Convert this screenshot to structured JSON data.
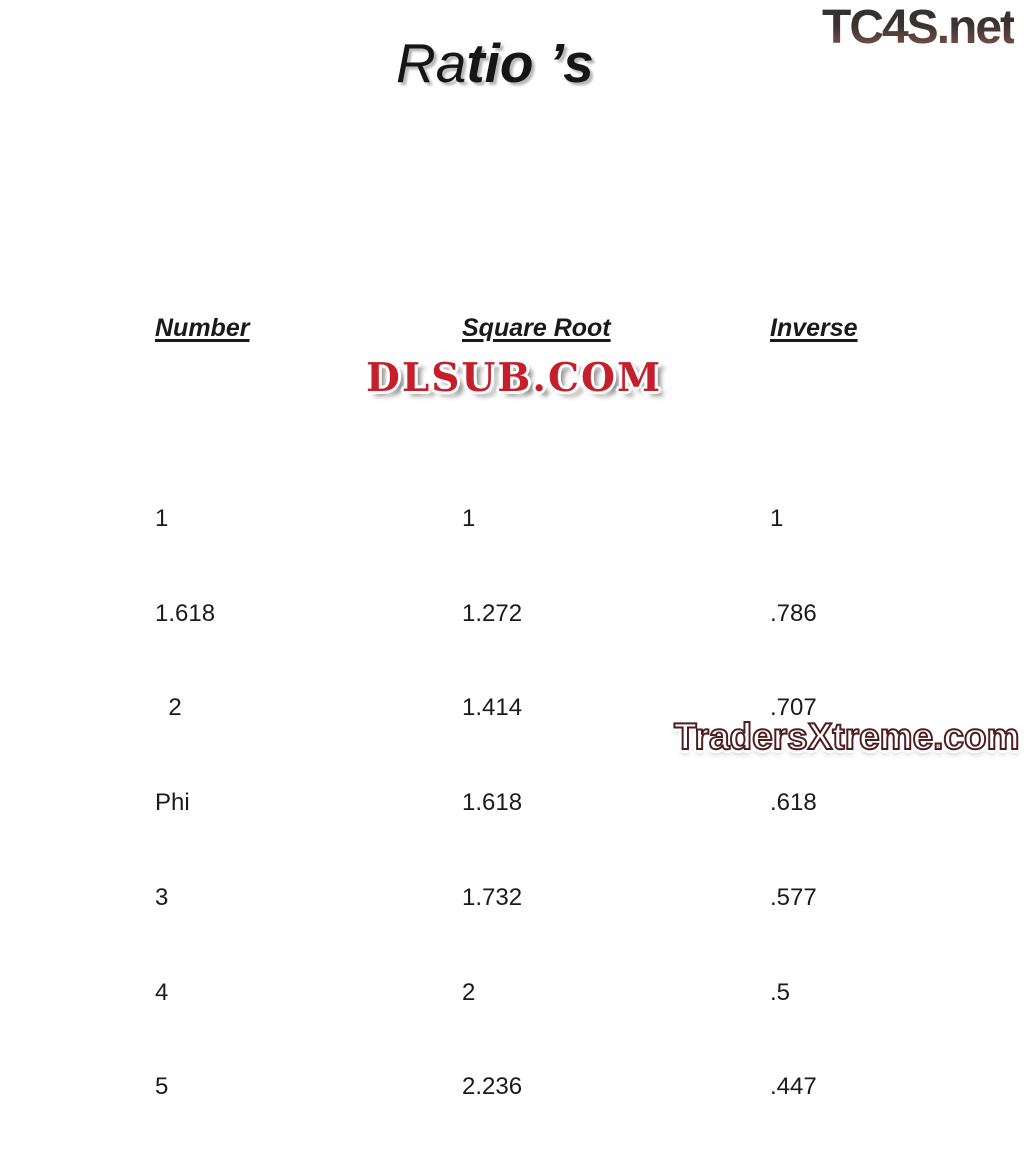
{
  "slide": {
    "title": {
      "full": "Ratio’s",
      "light_part": "Ra",
      "bold_part": "tio",
      "suffix_part": " ’s"
    },
    "table": {
      "columns": [
        {
          "header": "Number",
          "values": [
            "1",
            "1.618",
            "  2",
            "Phi",
            "3",
            "4",
            "5"
          ]
        },
        {
          "header": "Square Root",
          "values": [
            "1",
            "1.272",
            "1.414",
            "1.618",
            "1.732",
            "2",
            "2.236"
          ]
        },
        {
          "header": "Inverse",
          "values": [
            "1",
            ".786",
            ".707",
            ".618",
            ".577",
            ".5",
            ".447"
          ]
        }
      ]
    }
  },
  "watermarks": {
    "tc4s": "TC4S.net",
    "dlsub": "DLSUB.COM",
    "tradersxtreme": "TradersXtreme.com"
  },
  "colors": {
    "background": "#ffffff",
    "body_text": "#1a1a1a",
    "dlsub_red": "#c41f2b",
    "traders_pink": "#c25c5c",
    "traders_outline": "#4e1e1e",
    "tc4s_dark": "#353031",
    "tc4s_red": "#8d5f53",
    "title_shadow": "#b9b9b9"
  }
}
